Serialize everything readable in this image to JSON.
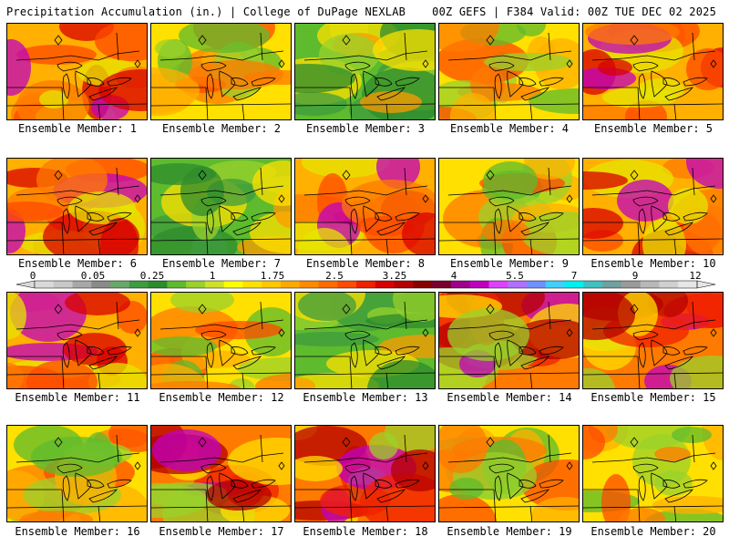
{
  "header": {
    "left": "Precipitation Accumulation (in.) | College of DuPage NEXLAB",
    "right": "00Z GEFS | F384 Valid: 00Z TUE DEC 02 2025"
  },
  "colorbar": {
    "labels": [
      "0",
      "0.05",
      "0.25",
      "1",
      "1.75",
      "2.5",
      "3.25",
      "4",
      "5.5",
      "7",
      "9",
      "12"
    ],
    "colors": [
      "#d9d9d9",
      "#c8c8c8",
      "#a8a8a8",
      "#8a8a8a",
      "#6aa86a",
      "#3f9b3f",
      "#2d8b2d",
      "#5dbb2d",
      "#9ad12b",
      "#cfe026",
      "#fdfd05",
      "#ffe000",
      "#ffc800",
      "#ffa800",
      "#ff8a00",
      "#ff6a00",
      "#ff4a00",
      "#f02000",
      "#d80000",
      "#b40000",
      "#8a0000",
      "#7a0030",
      "#a0008a",
      "#c000c0",
      "#e040ff",
      "#b070ff",
      "#7090ff",
      "#40d0ff",
      "#00f0f0",
      "#40c0c0",
      "#70a0a0",
      "#9a9a9a",
      "#b8b8b8",
      "#d0d0d0",
      "#e6e6e6"
    ]
  },
  "panels": [
    {
      "label": "Ensemble Member: 1",
      "scheme": "orange"
    },
    {
      "label": "Ensemble Member: 2",
      "scheme": "yellow"
    },
    {
      "label": "Ensemble Member: 3",
      "scheme": "green"
    },
    {
      "label": "Ensemble Member: 4",
      "scheme": "yellow"
    },
    {
      "label": "Ensemble Member: 5",
      "scheme": "orange"
    },
    {
      "label": "Ensemble Member: 6",
      "scheme": "orange"
    },
    {
      "label": "Ensemble Member: 7",
      "scheme": "green"
    },
    {
      "label": "Ensemble Member: 8",
      "scheme": "orange"
    },
    {
      "label": "Ensemble Member: 9",
      "scheme": "yellow"
    },
    {
      "label": "Ensemble Member: 10",
      "scheme": "orange"
    },
    {
      "label": "Ensemble Member: 11",
      "scheme": "orange"
    },
    {
      "label": "Ensemble Member: 12",
      "scheme": "yellow"
    },
    {
      "label": "Ensemble Member: 13",
      "scheme": "green"
    },
    {
      "label": "Ensemble Member: 14",
      "scheme": "red"
    },
    {
      "label": "Ensemble Member: 15",
      "scheme": "red"
    },
    {
      "label": "Ensemble Member: 16",
      "scheme": "yellow"
    },
    {
      "label": "Ensemble Member: 17",
      "scheme": "red"
    },
    {
      "label": "Ensemble Member: 18",
      "scheme": "red"
    },
    {
      "label": "Ensemble Member: 19",
      "scheme": "yellow"
    },
    {
      "label": "Ensemble Member: 20",
      "scheme": "yellow"
    }
  ]
}
